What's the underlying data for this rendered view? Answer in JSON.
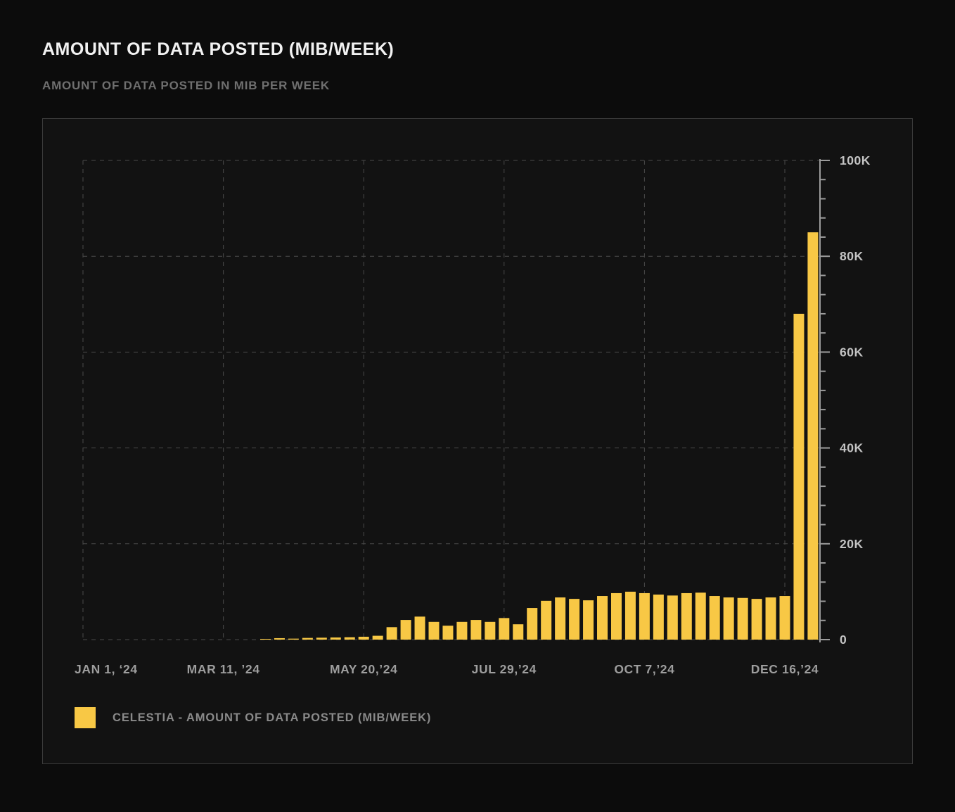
{
  "page": {
    "title": "AMOUNT OF DATA POSTED (MIB/WEEK)",
    "subtitle": "AMOUNT OF DATA POSTED IN MIB PER WEEK"
  },
  "legend": {
    "label": "CELESTIA - AMOUNT OF DATA POSTED (MIB/WEEK)",
    "swatch_color": "#f8c845"
  },
  "colors": {
    "background": "#0c0c0c",
    "panel_background": "#121212",
    "panel_border": "#3c3c3c",
    "bar": "#f8c845",
    "grid": "#4a4a4a",
    "axis": "#9c9c9c",
    "y_tick_label": "#c4c4c4",
    "x_tick_label": "#9e9e9e"
  },
  "chart_data": {
    "type": "bar",
    "title": "AMOUNT OF DATA POSTED (MIB/WEEK)",
    "subtitle": "AMOUNT OF DATA POSTED IN MIB PER WEEK",
    "xlabel": "",
    "ylabel": "",
    "x_unit": "week",
    "ylim": [
      0,
      100000
    ],
    "grid": "dashed",
    "legend_position": "bottom-left",
    "y_ticks": [
      {
        "value": 0,
        "label": "0"
      },
      {
        "value": 20000,
        "label": "20K"
      },
      {
        "value": 40000,
        "label": "40K"
      },
      {
        "value": 60000,
        "label": "60K"
      },
      {
        "value": 80000,
        "label": "80K"
      },
      {
        "value": 100000,
        "label": "100K"
      }
    ],
    "y_minor_tick_step": 4000,
    "x_ticks": [
      {
        "index": 0,
        "label": "JAN 1, ‘24"
      },
      {
        "index": 10,
        "label": "MAR 11, ’24"
      },
      {
        "index": 20,
        "label": "MAY 20,’24"
      },
      {
        "index": 30,
        "label": "JUL 29,’24"
      },
      {
        "index": 40,
        "label": "OCT 7,’24"
      },
      {
        "index": 50,
        "label": "DEC 16,’24"
      }
    ],
    "series": [
      {
        "name": "CELESTIA - AMOUNT OF DATA POSTED (MIB/WEEK)",
        "values": [
          0,
          0,
          0,
          0,
          0,
          0,
          0,
          0,
          0,
          0,
          0,
          0,
          0,
          150,
          300,
          200,
          350,
          400,
          450,
          500,
          600,
          800,
          2600,
          4100,
          4800,
          3700,
          2900,
          3700,
          4100,
          3700,
          4500,
          3200,
          6600,
          8100,
          8800,
          8500,
          8200,
          9100,
          9700,
          10000,
          9700,
          9400,
          9200,
          9700,
          9800,
          9100,
          8800,
          8700,
          8500,
          8800,
          9100,
          68000,
          85000
        ]
      }
    ]
  }
}
